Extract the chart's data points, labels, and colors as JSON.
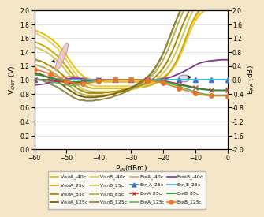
{
  "background_color": "#f5e6c8",
  "plot_bg": "#ffffff",
  "x_min": -60,
  "x_max": 0,
  "x_ticks": [
    -60,
    -50,
    -40,
    -30,
    -20,
    -10,
    0
  ],
  "y_left_min": 0.0,
  "y_left_max": 2.0,
  "y_left_ticks": [
    0.0,
    0.2,
    0.4,
    0.6,
    0.8,
    1.0,
    1.2,
    1.4,
    1.6,
    1.8,
    2.0
  ],
  "y_right_min": -2.0,
  "y_right_max": 2.0,
  "y_right_ticks": [
    -2.0,
    -1.6,
    -1.2,
    -0.8,
    -0.4,
    0.0,
    0.4,
    0.8,
    1.2,
    1.6,
    2.0
  ],
  "xlabel": "P$_{IN}$(dBm)",
  "ylabel_left": "V$_{OUT}$ (V)",
  "ylabel_right": "E$_{RR}$ (dB)",
  "pin": [
    -60,
    -59,
    -58,
    -57,
    -56,
    -55,
    -54,
    -53,
    -52,
    -51,
    -50,
    -49,
    -48,
    -47,
    -46,
    -45,
    -44,
    -43,
    -42,
    -41,
    -40,
    -39,
    -38,
    -37,
    -36,
    -35,
    -34,
    -33,
    -32,
    -31,
    -30,
    -29,
    -28,
    -27,
    -26,
    -25,
    -24,
    -23,
    -22,
    -21,
    -20,
    -19,
    -18,
    -17,
    -16,
    -15,
    -14,
    -13,
    -12,
    -11,
    -10,
    -9,
    -8,
    -7,
    -6,
    -5,
    -4,
    -3,
    -2,
    -1,
    0
  ],
  "vout_A_n40": [
    1.72,
    1.7,
    1.68,
    1.66,
    1.63,
    1.6,
    1.56,
    1.52,
    1.47,
    1.41,
    1.35,
    1.28,
    1.21,
    1.15,
    1.1,
    1.06,
    1.03,
    1.01,
    1.0,
    0.99,
    0.98,
    0.98,
    0.97,
    0.97,
    0.97,
    0.97,
    0.97,
    0.97,
    0.97,
    0.97,
    0.97,
    0.97,
    0.97,
    0.97,
    0.97,
    0.98,
    0.98,
    0.99,
    1.0,
    1.02,
    1.04,
    1.07,
    1.11,
    1.16,
    1.23,
    1.32,
    1.42,
    1.54,
    1.65,
    1.76,
    1.85,
    1.92,
    1.97,
    2.0,
    2.02,
    2.03,
    2.04,
    2.04,
    2.04,
    2.04,
    2.04
  ],
  "vout_B_n40": [
    1.68,
    1.66,
    1.63,
    1.61,
    1.58,
    1.54,
    1.5,
    1.46,
    1.41,
    1.35,
    1.28,
    1.21,
    1.14,
    1.08,
    1.02,
    0.98,
    0.95,
    0.93,
    0.92,
    0.91,
    0.91,
    0.91,
    0.91,
    0.91,
    0.91,
    0.91,
    0.91,
    0.91,
    0.91,
    0.91,
    0.91,
    0.91,
    0.92,
    0.92,
    0.93,
    0.94,
    0.95,
    0.96,
    0.98,
    1.0,
    1.03,
    1.06,
    1.1,
    1.16,
    1.23,
    1.32,
    1.42,
    1.53,
    1.65,
    1.77,
    1.88,
    1.97,
    2.03,
    2.07,
    2.09,
    2.1,
    2.11,
    2.11,
    2.11,
    2.11,
    2.11
  ],
  "vout_A_25": [
    1.55,
    1.53,
    1.51,
    1.49,
    1.46,
    1.43,
    1.39,
    1.35,
    1.3,
    1.25,
    1.19,
    1.13,
    1.07,
    1.02,
    0.97,
    0.93,
    0.91,
    0.89,
    0.88,
    0.88,
    0.88,
    0.88,
    0.88,
    0.88,
    0.88,
    0.88,
    0.88,
    0.88,
    0.88,
    0.88,
    0.88,
    0.88,
    0.89,
    0.89,
    0.9,
    0.91,
    0.92,
    0.94,
    0.96,
    0.99,
    1.02,
    1.06,
    1.11,
    1.18,
    1.26,
    1.36,
    1.47,
    1.59,
    1.72,
    1.83,
    1.92,
    1.99,
    2.04,
    2.07,
    2.09,
    2.1,
    2.11,
    2.11,
    2.11,
    2.11,
    2.11
  ],
  "vout_B_25": [
    1.48,
    1.46,
    1.44,
    1.42,
    1.39,
    1.36,
    1.32,
    1.28,
    1.23,
    1.18,
    1.12,
    1.06,
    1.0,
    0.95,
    0.9,
    0.87,
    0.85,
    0.84,
    0.83,
    0.83,
    0.83,
    0.83,
    0.83,
    0.83,
    0.83,
    0.83,
    0.83,
    0.84,
    0.84,
    0.85,
    0.86,
    0.87,
    0.88,
    0.89,
    0.91,
    0.93,
    0.95,
    0.98,
    1.01,
    1.05,
    1.1,
    1.15,
    1.22,
    1.3,
    1.4,
    1.51,
    1.63,
    1.75,
    1.87,
    1.97,
    2.05,
    2.1,
    2.13,
    2.15,
    2.16,
    2.16,
    2.16,
    2.16,
    2.16,
    2.16,
    2.16
  ],
  "vout_A_85": [
    1.3,
    1.28,
    1.27,
    1.25,
    1.22,
    1.2,
    1.17,
    1.14,
    1.1,
    1.06,
    1.02,
    0.97,
    0.93,
    0.89,
    0.86,
    0.84,
    0.82,
    0.81,
    0.81,
    0.81,
    0.81,
    0.81,
    0.82,
    0.82,
    0.83,
    0.83,
    0.84,
    0.85,
    0.86,
    0.87,
    0.88,
    0.89,
    0.91,
    0.92,
    0.94,
    0.96,
    0.99,
    1.02,
    1.06,
    1.11,
    1.17,
    1.24,
    1.33,
    1.43,
    1.54,
    1.66,
    1.78,
    1.89,
    1.99,
    2.06,
    2.11,
    2.14,
    2.16,
    2.17,
    2.18,
    2.18,
    2.18,
    2.18,
    2.18,
    2.18,
    2.18
  ],
  "vout_B_85": [
    1.22,
    1.21,
    1.19,
    1.18,
    1.15,
    1.13,
    1.1,
    1.07,
    1.03,
    0.99,
    0.95,
    0.91,
    0.87,
    0.83,
    0.81,
    0.79,
    0.78,
    0.77,
    0.77,
    0.77,
    0.77,
    0.78,
    0.78,
    0.79,
    0.8,
    0.81,
    0.82,
    0.83,
    0.85,
    0.86,
    0.88,
    0.9,
    0.92,
    0.94,
    0.97,
    1.0,
    1.04,
    1.08,
    1.14,
    1.21,
    1.29,
    1.38,
    1.49,
    1.61,
    1.73,
    1.85,
    1.96,
    2.05,
    2.11,
    2.15,
    2.17,
    2.18,
    2.19,
    2.19,
    2.19,
    2.19,
    2.19,
    2.19,
    2.19,
    2.19,
    2.19
  ],
  "vout_A_125": [
    1.1,
    1.09,
    1.08,
    1.06,
    1.04,
    1.02,
    1.0,
    0.98,
    0.95,
    0.92,
    0.88,
    0.85,
    0.82,
    0.79,
    0.77,
    0.76,
    0.75,
    0.75,
    0.75,
    0.75,
    0.76,
    0.76,
    0.77,
    0.78,
    0.79,
    0.8,
    0.82,
    0.83,
    0.85,
    0.87,
    0.89,
    0.91,
    0.94,
    0.97,
    1.0,
    1.04,
    1.08,
    1.14,
    1.21,
    1.29,
    1.38,
    1.49,
    1.61,
    1.73,
    1.85,
    1.96,
    2.05,
    2.12,
    2.17,
    2.2,
    2.21,
    2.22,
    2.22,
    2.22,
    2.22,
    2.22,
    2.22,
    2.22,
    2.22,
    2.22,
    2.22
  ],
  "vout_B_125": [
    1.02,
    1.01,
    1.0,
    0.98,
    0.96,
    0.94,
    0.92,
    0.9,
    0.87,
    0.84,
    0.81,
    0.78,
    0.75,
    0.73,
    0.71,
    0.71,
    0.7,
    0.7,
    0.7,
    0.71,
    0.71,
    0.72,
    0.73,
    0.74,
    0.75,
    0.77,
    0.78,
    0.8,
    0.82,
    0.84,
    0.87,
    0.89,
    0.92,
    0.95,
    0.99,
    1.03,
    1.07,
    1.13,
    1.2,
    1.28,
    1.38,
    1.49,
    1.61,
    1.73,
    1.85,
    1.96,
    2.05,
    2.12,
    2.17,
    2.2,
    2.22,
    2.23,
    2.23,
    2.23,
    2.23,
    2.23,
    2.23,
    2.23,
    2.23,
    2.23,
    2.23
  ],
  "err_A_n40": [
    0.0,
    0.0,
    0.0,
    0.0,
    0.0,
    0.01,
    0.02,
    0.03,
    0.05,
    0.07,
    0.09,
    0.1,
    0.1,
    0.09,
    0.07,
    0.05,
    0.03,
    0.02,
    0.01,
    0.0,
    0.0,
    0.0,
    0.0,
    0.0,
    0.0,
    0.0,
    0.0,
    0.0,
    0.0,
    0.0,
    0.0,
    0.0,
    0.0,
    0.0,
    0.0,
    0.0,
    0.0,
    0.0,
    0.0,
    0.01,
    0.02,
    0.04,
    0.07,
    0.1,
    0.14,
    0.18,
    0.22,
    0.27,
    0.32,
    0.37,
    0.42,
    0.47,
    0.5,
    0.52,
    0.54,
    0.55,
    0.56,
    0.57,
    0.58,
    0.58,
    0.58
  ],
  "err_B_n40": [
    -0.15,
    -0.14,
    -0.13,
    -0.12,
    -0.1,
    -0.08,
    -0.06,
    -0.03,
    -0.01,
    0.01,
    0.03,
    0.04,
    0.05,
    0.05,
    0.04,
    0.03,
    0.02,
    0.01,
    0.01,
    0.0,
    0.0,
    0.0,
    0.0,
    0.0,
    0.0,
    0.0,
    0.0,
    0.0,
    0.0,
    0.0,
    0.0,
    0.0,
    0.0,
    0.0,
    0.0,
    0.0,
    0.0,
    0.01,
    0.01,
    0.02,
    0.03,
    0.05,
    0.07,
    0.1,
    0.14,
    0.18,
    0.22,
    0.27,
    0.32,
    0.37,
    0.42,
    0.47,
    0.5,
    0.52,
    0.54,
    0.55,
    0.56,
    0.57,
    0.58,
    0.58,
    0.58
  ],
  "err_A_25": [
    0.0,
    0.0,
    0.0,
    0.0,
    0.0,
    0.0,
    0.0,
    0.0,
    0.0,
    0.0,
    0.0,
    0.0,
    0.0,
    0.0,
    0.0,
    0.0,
    0.0,
    0.0,
    0.0,
    0.0,
    0.0,
    0.0,
    0.0,
    0.0,
    0.0,
    0.0,
    0.0,
    0.0,
    0.0,
    0.0,
    0.0,
    0.0,
    0.0,
    0.0,
    0.0,
    0.0,
    0.0,
    0.0,
    0.0,
    0.0,
    0.0,
    0.0,
    0.0,
    0.0,
    0.0,
    0.0,
    0.0,
    0.0,
    0.0,
    0.0,
    0.0,
    0.0,
    0.0,
    0.0,
    0.0,
    0.0,
    0.0,
    0.0,
    0.0,
    0.0,
    0.0
  ],
  "err_B_25": [
    0.0,
    0.0,
    0.0,
    0.0,
    0.0,
    0.0,
    0.0,
    0.0,
    0.0,
    0.0,
    0.0,
    0.0,
    0.0,
    0.0,
    0.0,
    0.0,
    0.0,
    0.0,
    0.0,
    0.0,
    0.0,
    0.0,
    0.0,
    0.0,
    0.0,
    0.0,
    0.0,
    0.0,
    0.0,
    0.0,
    0.0,
    0.0,
    0.0,
    0.0,
    0.0,
    0.0,
    0.0,
    0.0,
    0.0,
    0.0,
    0.0,
    0.0,
    0.0,
    0.0,
    0.0,
    0.0,
    0.0,
    0.0,
    0.0,
    0.0,
    0.0,
    0.0,
    0.0,
    0.0,
    0.0,
    0.0,
    0.0,
    0.0,
    0.0,
    0.0,
    0.0
  ],
  "err_A_85": [
    0.0,
    0.0,
    0.0,
    0.0,
    0.0,
    -0.01,
    -0.02,
    -0.03,
    -0.05,
    -0.06,
    -0.08,
    -0.09,
    -0.09,
    -0.08,
    -0.07,
    -0.05,
    -0.03,
    -0.02,
    -0.01,
    0.0,
    0.0,
    0.0,
    0.0,
    0.0,
    0.0,
    0.0,
    0.0,
    0.0,
    0.0,
    0.0,
    0.0,
    0.0,
    0.0,
    0.0,
    0.0,
    0.0,
    0.0,
    -0.01,
    -0.01,
    -0.02,
    -0.03,
    -0.04,
    -0.06,
    -0.08,
    -0.1,
    -0.12,
    -0.14,
    -0.16,
    -0.18,
    -0.2,
    -0.22,
    -0.24,
    -0.26,
    -0.27,
    -0.28,
    -0.29,
    -0.3,
    -0.3,
    -0.3,
    -0.3,
    -0.3
  ],
  "err_B_85": [
    0.15,
    0.14,
    0.13,
    0.11,
    0.09,
    0.07,
    0.05,
    0.02,
    0.0,
    -0.02,
    -0.04,
    -0.05,
    -0.06,
    -0.06,
    -0.06,
    -0.05,
    -0.04,
    -0.03,
    -0.02,
    -0.01,
    0.0,
    0.0,
    0.0,
    0.0,
    0.0,
    0.0,
    0.0,
    0.0,
    0.0,
    0.0,
    0.0,
    0.0,
    0.0,
    0.0,
    0.0,
    0.0,
    -0.01,
    -0.01,
    -0.02,
    -0.03,
    -0.04,
    -0.06,
    -0.08,
    -0.1,
    -0.12,
    -0.14,
    -0.16,
    -0.18,
    -0.2,
    -0.22,
    -0.24,
    -0.26,
    -0.27,
    -0.28,
    -0.29,
    -0.29,
    -0.3,
    -0.3,
    -0.3,
    -0.3,
    -0.3
  ],
  "err_A_125": [
    0.0,
    0.0,
    -0.01,
    -0.02,
    -0.03,
    -0.05,
    -0.07,
    -0.09,
    -0.11,
    -0.13,
    -0.15,
    -0.16,
    -0.16,
    -0.15,
    -0.13,
    -0.11,
    -0.08,
    -0.06,
    -0.04,
    -0.02,
    -0.01,
    0.0,
    0.0,
    0.0,
    0.0,
    0.0,
    0.0,
    0.0,
    0.0,
    0.0,
    0.0,
    0.0,
    0.0,
    0.0,
    0.0,
    -0.01,
    -0.01,
    -0.02,
    -0.03,
    -0.04,
    -0.06,
    -0.08,
    -0.1,
    -0.13,
    -0.16,
    -0.19,
    -0.22,
    -0.25,
    -0.28,
    -0.31,
    -0.34,
    -0.37,
    -0.39,
    -0.41,
    -0.42,
    -0.43,
    -0.44,
    -0.44,
    -0.44,
    -0.44,
    -0.44
  ],
  "err_B_125": [
    0.3,
    0.28,
    0.26,
    0.23,
    0.2,
    0.17,
    0.13,
    0.09,
    0.05,
    0.01,
    -0.03,
    -0.06,
    -0.08,
    -0.1,
    -0.11,
    -0.11,
    -0.1,
    -0.09,
    -0.07,
    -0.05,
    -0.03,
    -0.02,
    -0.01,
    0.0,
    0.0,
    0.0,
    0.0,
    0.0,
    0.0,
    0.0,
    0.0,
    0.0,
    0.0,
    0.0,
    -0.01,
    -0.01,
    -0.02,
    -0.03,
    -0.05,
    -0.07,
    -0.09,
    -0.12,
    -0.15,
    -0.18,
    -0.21,
    -0.24,
    -0.27,
    -0.3,
    -0.33,
    -0.36,
    -0.39,
    -0.41,
    -0.43,
    -0.44,
    -0.45,
    -0.45,
    -0.46,
    -0.46,
    -0.46,
    -0.46,
    -0.46
  ]
}
